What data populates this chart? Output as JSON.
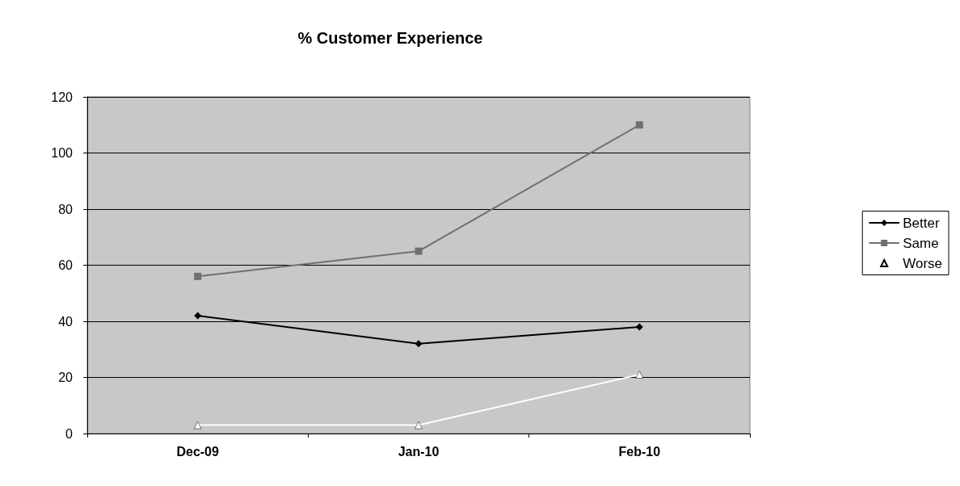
{
  "chart_data": {
    "type": "line",
    "title": "% Customer Experience",
    "categories": [
      "Dec-09",
      "Jan-10",
      "Feb-10"
    ],
    "series": [
      {
        "name": "Better",
        "color": "#000000",
        "marker": "diamond",
        "values": [
          42,
          32,
          38
        ]
      },
      {
        "name": "Same",
        "color": "#707070",
        "marker": "square",
        "values": [
          56,
          65,
          110
        ]
      },
      {
        "name": "Worse",
        "color": "#ffffff",
        "marker": "triangle",
        "values": [
          3,
          3,
          21
        ]
      }
    ],
    "ylim": [
      0,
      120
    ],
    "yticks": [
      0,
      20,
      40,
      60,
      80,
      100,
      120
    ],
    "grid": "y",
    "legend": "right"
  }
}
